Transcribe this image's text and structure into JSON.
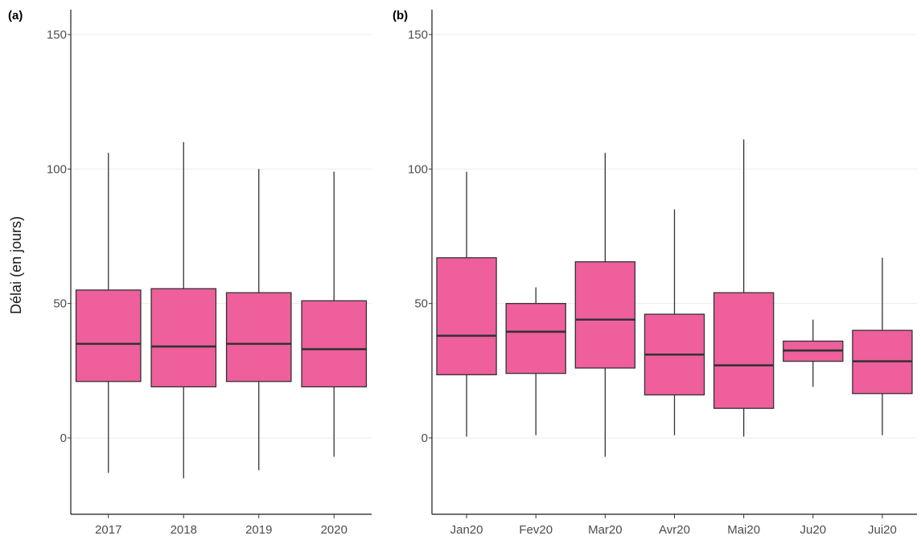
{
  "y_axis_label": "Délai (en jours)",
  "colors": {
    "box_fill": "#ee5f9b",
    "box_stroke": "#333333",
    "grid": "#ebebeb"
  },
  "chart_data": [
    {
      "type": "boxplot",
      "panel_label": "(a)",
      "ylabel": "Délai (en jours)",
      "ylim": [
        -28,
        160
      ],
      "yticks": [
        0,
        50,
        100,
        150
      ],
      "grid": "horizontal",
      "categories": [
        "2017",
        "2018",
        "2019",
        "2020"
      ],
      "boxes": [
        {
          "category": "2017",
          "min": -13,
          "q1": 21,
          "median": 35,
          "q3": 55,
          "max": 106
        },
        {
          "category": "2018",
          "min": -15,
          "q1": 19,
          "median": 34,
          "q3": 55.5,
          "max": 110
        },
        {
          "category": "2019",
          "min": -12,
          "q1": 21,
          "median": 35,
          "q3": 54,
          "max": 100
        },
        {
          "category": "2020",
          "min": -7,
          "q1": 19,
          "median": 33,
          "q3": 51,
          "max": 99
        }
      ]
    },
    {
      "type": "boxplot",
      "panel_label": "(b)",
      "ylim": [
        -28,
        160
      ],
      "yticks": [
        0,
        50,
        100,
        150
      ],
      "grid": "horizontal",
      "categories": [
        "Jan20",
        "Fev20",
        "Mar20",
        "Avr20",
        "Mai20",
        "Ju20",
        "Jui20"
      ],
      "boxes": [
        {
          "category": "Jan20",
          "min": 0.5,
          "q1": 23.5,
          "median": 38,
          "q3": 67,
          "max": 99
        },
        {
          "category": "Fev20",
          "min": 1,
          "q1": 24,
          "median": 39.5,
          "q3": 50,
          "max": 56
        },
        {
          "category": "Mar20",
          "min": -7,
          "q1": 26,
          "median": 44,
          "q3": 65.5,
          "max": 106
        },
        {
          "category": "Avr20",
          "min": 1,
          "q1": 16,
          "median": 31,
          "q3": 46,
          "max": 85
        },
        {
          "category": "Mai20",
          "min": 0.5,
          "q1": 11,
          "median": 27,
          "q3": 54,
          "max": 111
        },
        {
          "category": "Ju20",
          "min": 19,
          "q1": 28.5,
          "median": 32.5,
          "q3": 36,
          "max": 44
        },
        {
          "category": "Jui20",
          "min": 1,
          "q1": 16.5,
          "median": 28.5,
          "q3": 40,
          "max": 67
        }
      ]
    }
  ]
}
